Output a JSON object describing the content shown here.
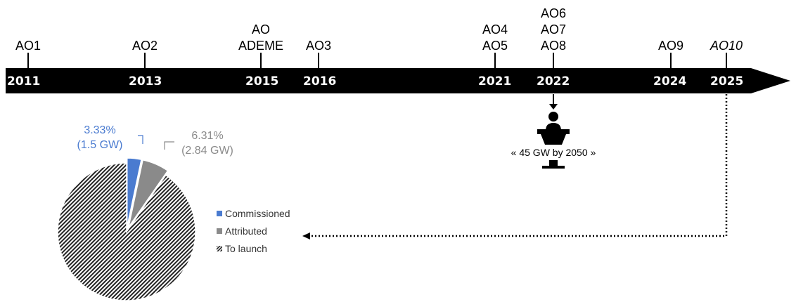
{
  "timeline": {
    "events": [
      {
        "year": "2011",
        "labels": [
          "AO1"
        ],
        "italic": false
      },
      {
        "year": "2013",
        "labels": [
          "AO2"
        ],
        "italic": false
      },
      {
        "year": "2015",
        "labels": [
          "AO",
          "ADEME"
        ],
        "italic": false
      },
      {
        "year": "2016",
        "labels": [
          "AO3"
        ],
        "italic": false
      },
      {
        "year": "2021",
        "labels": [
          "AO4",
          "AO5"
        ],
        "italic": false
      },
      {
        "year": "2022",
        "labels": [
          "AO6",
          "AO7",
          "AO8"
        ],
        "italic": false
      },
      {
        "year": "2024",
        "labels": [
          "AO9"
        ],
        "italic": false
      },
      {
        "year": "2025",
        "labels": [
          "AO10"
        ],
        "italic": true
      }
    ]
  },
  "announcement": {
    "quote": "« 45 GW by 2050 »",
    "icon": "speaker-at-podium-icon"
  },
  "chart_data": {
    "type": "pie",
    "slices": [
      {
        "name": "Commissioned",
        "percent": 3.33,
        "label": "3.33%",
        "sub_label": "(1.5 GW)",
        "color": "#4a7bd0",
        "pattern": "solid"
      },
      {
        "name": "Attributed",
        "percent": 6.31,
        "label": "6.31%",
        "sub_label": "(2.84 GW)",
        "color": "#8a8a8a",
        "pattern": "solid"
      },
      {
        "name": "To launch",
        "percent": 90.36,
        "label": "",
        "sub_label": "",
        "color": "#222222",
        "pattern": "hatched"
      }
    ],
    "legend_position": "right"
  },
  "legend": {
    "items": [
      {
        "label": "Commissioned",
        "color": "#4a7bd0"
      },
      {
        "label": "Attributed",
        "color": "#8a8a8a"
      },
      {
        "label": "To launch",
        "color": "#222222"
      }
    ]
  }
}
